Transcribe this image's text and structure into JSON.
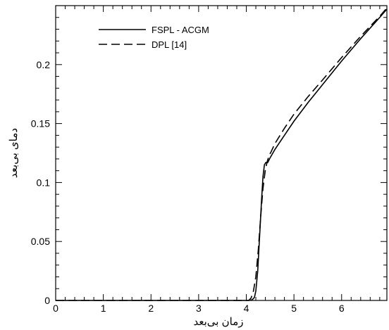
{
  "chart_data": {
    "type": "line",
    "title": "",
    "xlabel": "زمان بی‌بعد",
    "ylabel": "دمای بی‌بعد",
    "xlim": [
      0,
      6.95
    ],
    "ylim": [
      0,
      0.25
    ],
    "x_ticks": [
      "0",
      "1",
      "2",
      "3",
      "4",
      "5",
      "6"
    ],
    "y_ticks": [
      "0",
      "0.05",
      "0.1",
      "0.15",
      "0.2"
    ],
    "grid": false,
    "legend": "top-left",
    "series": [
      {
        "name": "FSPL - ACGM",
        "style": "solid",
        "x": [
          0,
          4.05,
          4.12,
          4.17,
          4.2,
          4.24,
          4.28,
          4.32,
          4.35,
          4.38,
          4.41,
          4.45,
          4.5,
          4.6,
          4.8,
          5.0,
          5.3,
          5.6,
          6.0,
          6.4,
          6.8,
          6.95
        ],
        "y": [
          0,
          0,
          0.0005,
          0.0025,
          0.008,
          0.025,
          0.055,
          0.085,
          0.105,
          0.115,
          0.117,
          0.117,
          0.121,
          0.128,
          0.14,
          0.152,
          0.168,
          0.183,
          0.203,
          0.222,
          0.24,
          0.247
        ]
      },
      {
        "name": "DPL [14]",
        "style": "dashed",
        "x": [
          0,
          4.05,
          4.1,
          4.15,
          4.2,
          4.25,
          4.3,
          4.35,
          4.4,
          4.44,
          4.48,
          4.52,
          4.6,
          4.8,
          5.0,
          5.3,
          5.6,
          6.0,
          6.4,
          6.8,
          6.95
        ],
        "y": [
          0,
          0,
          0.002,
          0.008,
          0.02,
          0.042,
          0.07,
          0.095,
          0.111,
          0.118,
          0.123,
          0.126,
          0.133,
          0.146,
          0.158,
          0.173,
          0.187,
          0.206,
          0.224,
          0.241,
          0.248
        ]
      }
    ]
  }
}
